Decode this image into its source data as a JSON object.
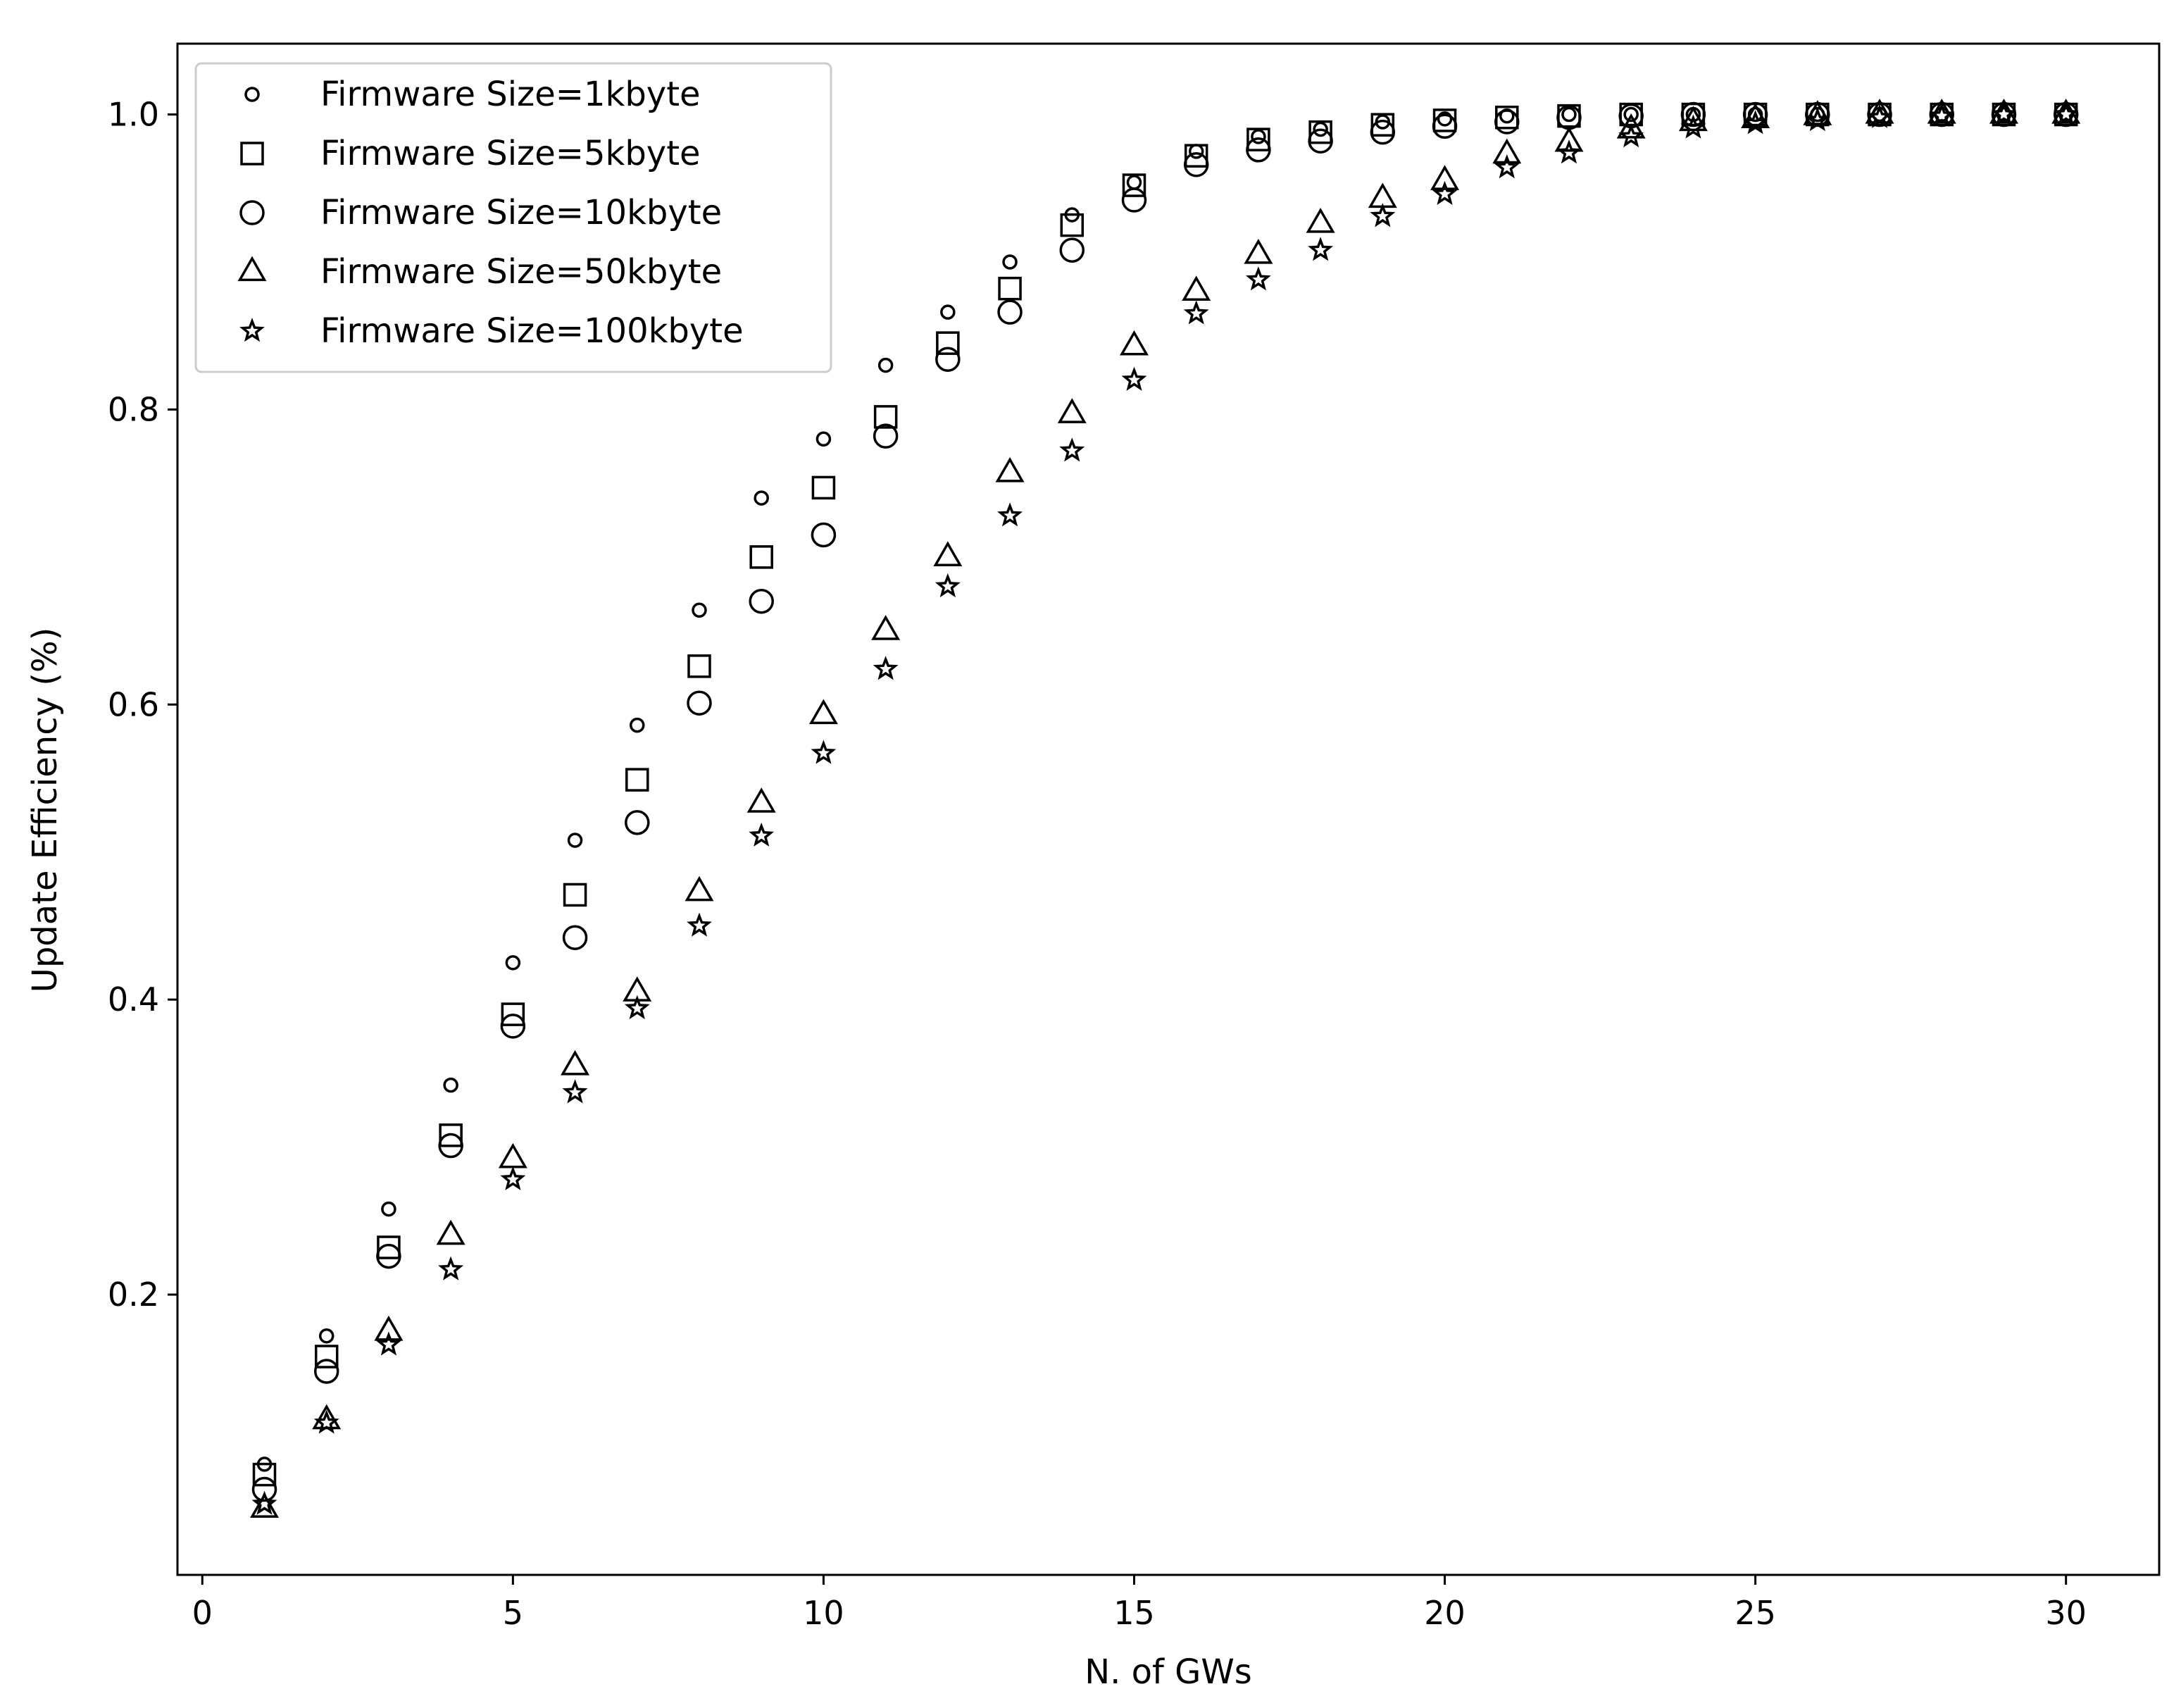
{
  "chart_data": {
    "type": "scatter",
    "title": "",
    "xlabel": "N. of GWs",
    "ylabel": "Update Efficiency (%)",
    "xlim": [
      -0.4,
      31.5
    ],
    "ylim": [
      0.01,
      1.048
    ],
    "xticks": [
      0,
      5,
      10,
      15,
      20,
      25,
      30
    ],
    "yticks": [
      0.2,
      0.4,
      0.6,
      0.8,
      1.0
    ],
    "xtick_labels": [
      "0",
      "5",
      "10",
      "15",
      "20",
      "25",
      "30"
    ],
    "ytick_labels": [
      "0.2",
      "0.4",
      "0.6",
      "0.8",
      "1.0"
    ],
    "grid": false,
    "legend_position": "top-left",
    "x": [
      1,
      2,
      3,
      4,
      5,
      6,
      7,
      8,
      9,
      10,
      11,
      12,
      13,
      14,
      15,
      16,
      17,
      18,
      19,
      20,
      21,
      22,
      23,
      24,
      25,
      26,
      27,
      28,
      29,
      30
    ],
    "series": [
      {
        "name": "Firmware Size=1kbyte",
        "marker": "small-circle",
        "values": [
          0.085,
          0.172,
          0.258,
          0.342,
          0.425,
          0.508,
          0.586,
          0.664,
          0.74,
          0.78,
          0.83,
          0.866,
          0.9,
          0.932,
          0.954,
          0.975,
          0.985,
          0.99,
          0.995,
          0.997,
          0.999,
          1.0,
          1.0,
          1.0,
          1.0,
          1.0,
          1.0,
          1.0,
          1.0,
          1.0
        ]
      },
      {
        "name": "Firmware Size=5kbyte",
        "marker": "square",
        "values": [
          0.078,
          0.158,
          0.232,
          0.308,
          0.39,
          0.471,
          0.549,
          0.626,
          0.7,
          0.747,
          0.795,
          0.845,
          0.882,
          0.925,
          0.952,
          0.972,
          0.983,
          0.988,
          0.993,
          0.996,
          0.998,
          0.999,
          1.0,
          1.0,
          1.0,
          1.0,
          1.0,
          1.0,
          1.0,
          1.0
        ]
      },
      {
        "name": "Firmware Size=10kbyte",
        "marker": "circle",
        "values": [
          0.068,
          0.148,
          0.226,
          0.301,
          0.382,
          0.442,
          0.52,
          0.601,
          0.67,
          0.715,
          0.782,
          0.834,
          0.866,
          0.908,
          0.942,
          0.966,
          0.976,
          0.982,
          0.988,
          0.992,
          0.995,
          0.998,
          0.999,
          1.0,
          1.0,
          1.0,
          1.0,
          1.0,
          1.0,
          1.0
        ]
      },
      {
        "name": "Firmware Size=50kbyte",
        "marker": "triangle",
        "values": [
          0.055,
          0.115,
          0.175,
          0.24,
          0.292,
          0.355,
          0.405,
          0.473,
          0.533,
          0.593,
          0.65,
          0.7,
          0.757,
          0.797,
          0.843,
          0.88,
          0.905,
          0.926,
          0.943,
          0.955,
          0.973,
          0.981,
          0.99,
          0.995,
          0.997,
          0.999,
          1.0,
          1.0,
          1.0,
          1.0
        ]
      },
      {
        "name": "Firmware Size=100kbyte",
        "marker": "star",
        "values": [
          0.058,
          0.113,
          0.166,
          0.217,
          0.278,
          0.337,
          0.394,
          0.45,
          0.511,
          0.567,
          0.624,
          0.68,
          0.728,
          0.772,
          0.82,
          0.865,
          0.888,
          0.908,
          0.931,
          0.946,
          0.964,
          0.974,
          0.985,
          0.991,
          0.994,
          0.996,
          0.998,
          0.999,
          1.0,
          1.0
        ]
      }
    ]
  }
}
